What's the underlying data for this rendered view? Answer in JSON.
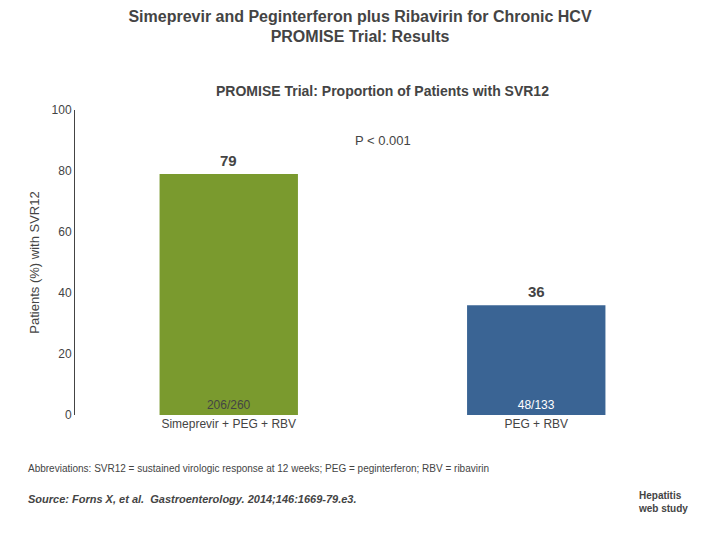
{
  "chart_data": {
    "type": "bar",
    "title": "Simeprevir and Peginterferon plus Ribavirin for Chronic HCV\nPROMISE Trial: Results",
    "subtitle": "PROMISE Trial: Proportion of Patients with SVR12",
    "ylabel": "Patients (%) with SVR12",
    "categories": [
      "Simeprevir + PEG + RBV",
      "PEG + RBV"
    ],
    "values": [
      79,
      36
    ],
    "colors": [
      "#7a9a2e",
      "#3a6494"
    ],
    "data_labels": true,
    "inside_labels": [
      "206/260",
      "48/133"
    ],
    "ylim": [
      0,
      100
    ],
    "yticks": [
      0,
      20,
      40,
      60,
      80,
      100
    ],
    "grid": false,
    "annotations": [
      "P < 0.001"
    ],
    "footnotes": [
      "Abbreviations: SVR12 = sustained virologic response at 12 weeks; PEG = peginterferon; RBV = ribavirin",
      "Source: Forns X, et al.  Gastroenterology. 2014;146:1669-79.e3.",
      "Hepatitis\nweb study"
    ]
  }
}
